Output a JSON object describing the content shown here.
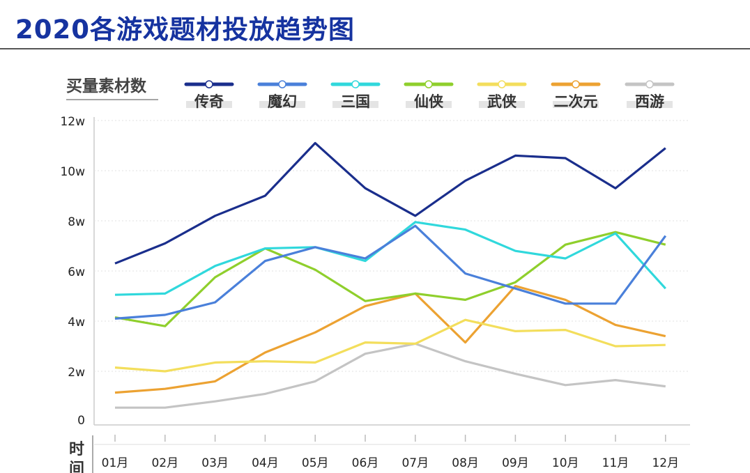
{
  "title": "2020各游戏题材投放趋势图",
  "chart_data": {
    "type": "line",
    "title": "2020各游戏题材投放趋势图",
    "ylabel": "买量素材数",
    "xlabel": "时间",
    "categories": [
      "01月",
      "02月",
      "03月",
      "04月",
      "05月",
      "06月",
      "07月",
      "08月",
      "09月",
      "10月",
      "11月",
      "12月"
    ],
    "yticks": [
      "0",
      "2w",
      "4w",
      "6w",
      "8w",
      "10w",
      "12w"
    ],
    "ylim": [
      0,
      12
    ],
    "unit": "w (万)",
    "grid": true,
    "legend_position": "top",
    "series": [
      {
        "name": "传奇",
        "color": "#1a2e8c",
        "values": [
          6.3,
          7.1,
          8.2,
          9.0,
          11.1,
          9.3,
          8.2,
          9.6,
          10.6,
          10.5,
          9.3,
          10.9
        ]
      },
      {
        "name": "魔幻",
        "color": "#4a80da",
        "values": [
          4.1,
          4.25,
          4.75,
          6.4,
          6.95,
          6.5,
          7.8,
          5.9,
          5.3,
          4.7,
          4.7,
          7.4
        ]
      },
      {
        "name": "三国",
        "color": "#30d8dc",
        "values": [
          5.05,
          5.1,
          6.2,
          6.9,
          6.95,
          6.4,
          7.95,
          7.65,
          6.8,
          6.5,
          7.5,
          5.3
        ]
      },
      {
        "name": "仙侠",
        "color": "#8fcf2c",
        "values": [
          4.15,
          3.8,
          5.75,
          6.9,
          6.05,
          4.8,
          5.1,
          4.85,
          5.55,
          7.05,
          7.55,
          7.05
        ]
      },
      {
        "name": "武侠",
        "color": "#f3de5c",
        "values": [
          2.15,
          2.0,
          2.35,
          2.4,
          2.35,
          3.15,
          3.1,
          4.05,
          3.6,
          3.65,
          3.0,
          3.05
        ]
      },
      {
        "name": "二次元",
        "color": "#eca232",
        "values": [
          1.15,
          1.3,
          1.6,
          2.75,
          3.55,
          4.6,
          5.1,
          3.15,
          5.4,
          4.85,
          3.85,
          3.4
        ]
      },
      {
        "name": "西游",
        "color": "#c4c4c4",
        "values": [
          0.55,
          0.55,
          0.8,
          1.1,
          1.6,
          2.7,
          3.1,
          2.4,
          1.9,
          1.45,
          1.65,
          1.4
        ]
      }
    ]
  }
}
